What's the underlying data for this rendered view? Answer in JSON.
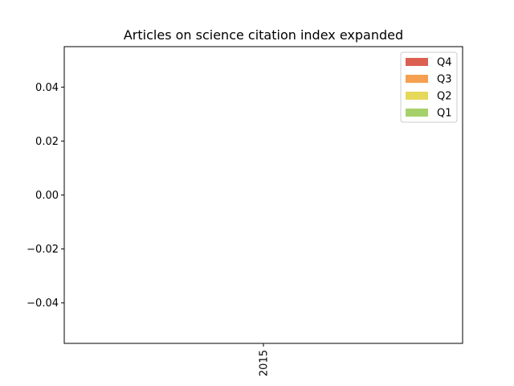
{
  "chart_data": {
    "type": "bar",
    "stacked": true,
    "title": "Articles on science citation index expanded",
    "xlabel": "",
    "ylabel": "",
    "categories": [
      "2015"
    ],
    "series": [
      {
        "name": "Q1",
        "values": [
          0
        ],
        "color": "#a6d06a"
      },
      {
        "name": "Q2",
        "values": [
          0
        ],
        "color": "#e6d85a"
      },
      {
        "name": "Q3",
        "values": [
          0
        ],
        "color": "#f5a050"
      },
      {
        "name": "Q4",
        "values": [
          0
        ],
        "color": "#dc6052"
      }
    ],
    "ylim": [
      -0.055,
      0.055
    ],
    "yticks": [
      {
        "value": 0.04,
        "label": "0.04"
      },
      {
        "value": 0.02,
        "label": "0.02"
      },
      {
        "value": 0.0,
        "label": "0.00"
      },
      {
        "value": -0.02,
        "label": "−0.02"
      },
      {
        "value": -0.04,
        "label": "−0.04"
      }
    ],
    "xtick_rotation": "vertical",
    "legend": {
      "placement": "top-right",
      "order": [
        "Q4",
        "Q3",
        "Q2",
        "Q1"
      ]
    },
    "grid": false
  }
}
